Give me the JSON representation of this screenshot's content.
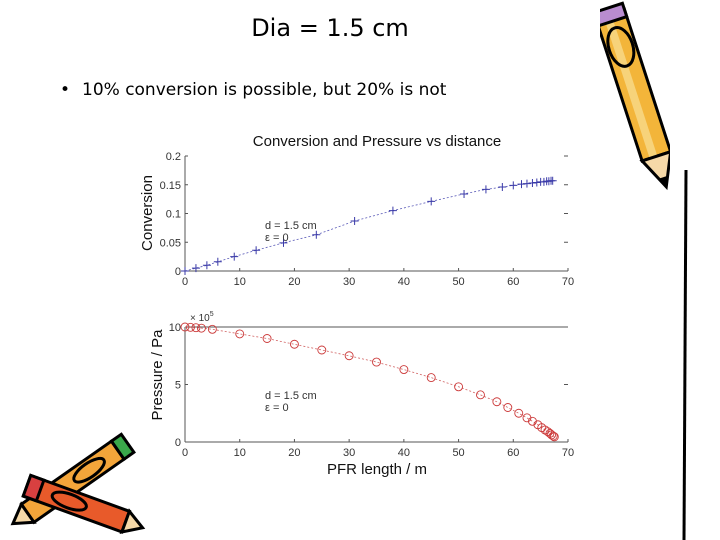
{
  "slide": {
    "title": "Dia = 1.5 cm",
    "bullet_symbol": "•",
    "bullet": "10% conversion is possible, but 20% is not"
  },
  "chart_data": [
    {
      "type": "line",
      "title": "Conversion and Pressure vs distance",
      "xlabel": "",
      "ylabel": "Conversion",
      "xlim": [
        0,
        70
      ],
      "ylim": [
        0,
        0.2
      ],
      "xticks": [
        "0",
        "10",
        "20",
        "30",
        "40",
        "50",
        "60",
        "70"
      ],
      "yticks": [
        "0",
        "0.05",
        "0.1",
        "0.15",
        "0.2"
      ],
      "annotations": [
        "d = 1.5 cm",
        "ε = 0"
      ],
      "marker": "+",
      "color": "#3a3aa8",
      "series": [
        {
          "name": "conversion",
          "x": [
            0,
            2,
            4,
            6,
            9,
            13,
            18,
            24,
            31,
            38,
            45,
            51,
            55,
            58,
            60,
            61.5,
            62.5,
            63.5,
            64.3,
            65,
            65.6,
            66.1,
            66.5,
            66.9,
            67.2
          ],
          "y": [
            0,
            0.005,
            0.01,
            0.016,
            0.025,
            0.036,
            0.049,
            0.063,
            0.087,
            0.105,
            0.121,
            0.134,
            0.142,
            0.146,
            0.149,
            0.151,
            0.152,
            0.153,
            0.154,
            0.155,
            0.155,
            0.156,
            0.156,
            0.157,
            0.157
          ]
        }
      ]
    },
    {
      "type": "line",
      "title": "",
      "xlabel": "PFR length / m",
      "ylabel": "Pressure / Pa",
      "xlim": [
        0,
        70
      ],
      "ylim": [
        0,
        10
      ],
      "xticks": [
        "0",
        "10",
        "20",
        "30",
        "40",
        "50",
        "60",
        "70"
      ],
      "yticks": [
        "0",
        "5",
        "10"
      ],
      "y_multiplier": "× 10",
      "y_multiplier_exp": "5",
      "annotations": [
        "d = 1.5 cm",
        "ε = 0"
      ],
      "marker": "o",
      "color": "#cc3a3a",
      "series": [
        {
          "name": "pressure",
          "x": [
            0,
            1,
            2,
            3,
            5,
            10,
            15,
            20,
            25,
            30,
            35,
            40,
            45,
            50,
            54,
            57,
            59,
            61,
            62.5,
            63.5,
            64.5,
            65.2,
            65.8,
            66.3,
            66.7,
            67,
            67.3,
            67.5
          ],
          "y": [
            10,
            9.97,
            9.94,
            9.9,
            9.8,
            9.4,
            9.0,
            8.5,
            8.0,
            7.5,
            6.95,
            6.3,
            5.6,
            4.8,
            4.1,
            3.5,
            3.0,
            2.5,
            2.1,
            1.8,
            1.5,
            1.25,
            1.05,
            0.9,
            0.75,
            0.62,
            0.52,
            0.45
          ]
        }
      ]
    }
  ]
}
